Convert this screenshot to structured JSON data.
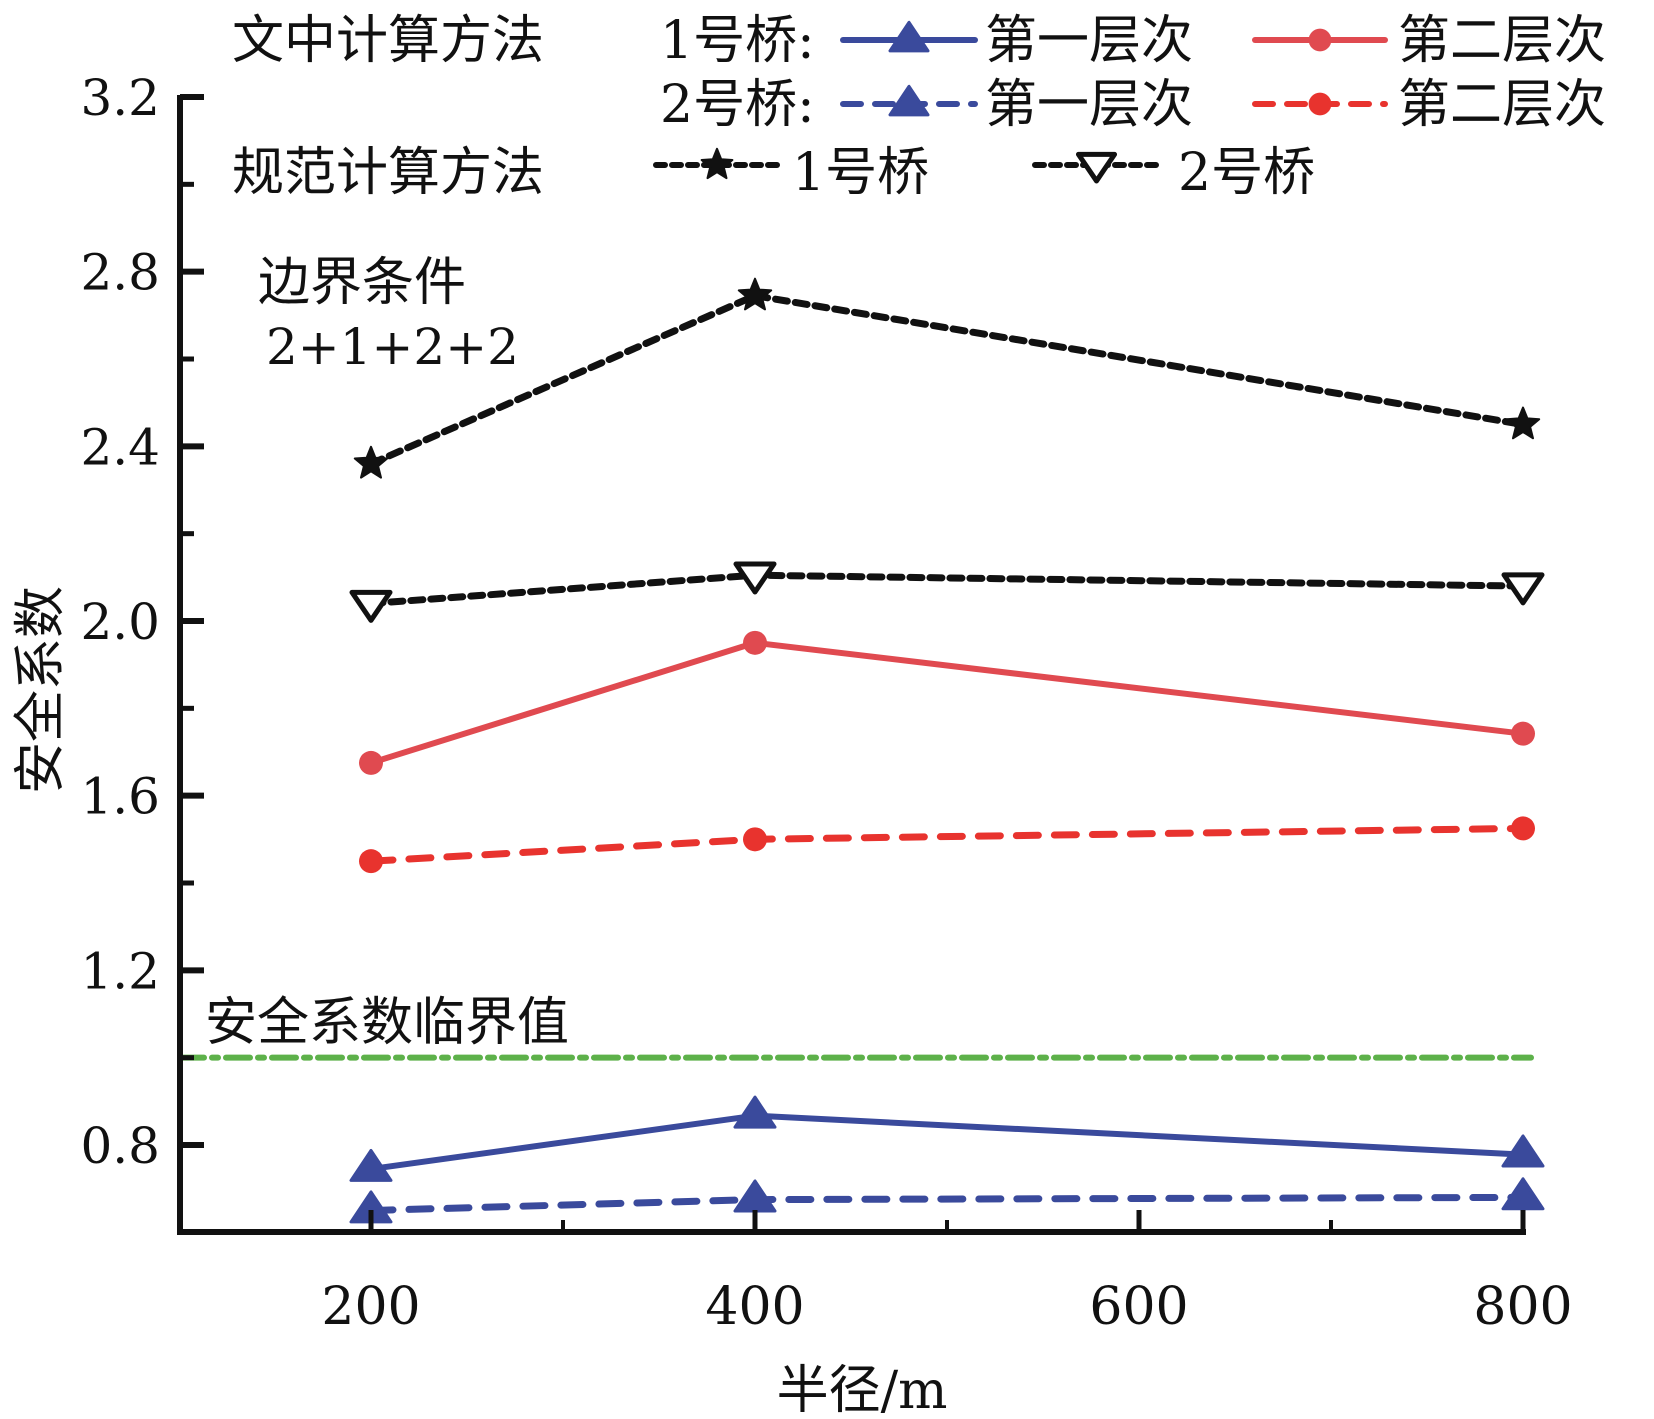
{
  "chart_data": {
    "type": "line",
    "xlabel": "半径/m",
    "ylabel": "安全系数",
    "xlim": [
      100,
      800
    ],
    "ylim": [
      0.6,
      3.2
    ],
    "x_ticks": [
      200,
      400,
      600,
      800
    ],
    "x_tick_labels": [
      "200",
      "400",
      "600",
      "800"
    ],
    "x_minor_ticks": [
      300,
      500,
      700
    ],
    "y_ticks": [
      0.8,
      1.2,
      1.6,
      2.0,
      2.4,
      2.8,
      3.2
    ],
    "y_tick_labels": [
      "0.8",
      "1.2",
      "1.6",
      "2.0",
      "2.4",
      "2.8",
      "3.2"
    ],
    "y_minor_ticks": [
      1.0,
      1.4,
      1.8,
      2.2,
      2.6,
      3.0
    ],
    "x": [
      200,
      400,
      800
    ],
    "series": [
      {
        "name": "文中计算方法 1号桥 第一层次",
        "values": [
          0.745,
          0.867,
          0.778
        ],
        "color": "#3a4a9c",
        "style": "solid",
        "marker": "triangle-up"
      },
      {
        "name": "文中计算方法 1号桥 第二层次",
        "values": [
          1.675,
          1.95,
          1.742
        ],
        "color": "#e04a50",
        "style": "solid",
        "marker": "circle"
      },
      {
        "name": "文中计算方法 2号桥 第一层次",
        "values": [
          0.65,
          0.675,
          0.68
        ],
        "color": "#3a4a9c",
        "style": "dashed",
        "marker": "triangle-up"
      },
      {
        "name": "文中计算方法 2号桥 第二层次",
        "values": [
          1.45,
          1.5,
          1.525
        ],
        "color": "#e8332e",
        "style": "dashed",
        "marker": "circle"
      },
      {
        "name": "规范计算方法 1号桥",
        "values": [
          2.36,
          2.745,
          2.45
        ],
        "color": "#111111",
        "style": "dotted",
        "marker": "star"
      },
      {
        "name": "规范计算方法 2号桥",
        "values": [
          2.04,
          2.105,
          2.08
        ],
        "color": "#111111",
        "style": "dotted",
        "marker": "triangle-down-open"
      }
    ],
    "reference_line": {
      "label": "安全系数临界值",
      "value": 1.0,
      "color": "#5db14a",
      "style": "dash-dot"
    },
    "annotation": {
      "line1": "边界条件",
      "line2": "2+1+2+2"
    },
    "legend": {
      "placement": "top",
      "method1": "文中计算方法",
      "method2": "规范计算方法",
      "bridge1": "1号桥:",
      "bridge2": "2号桥:",
      "level1": "第一层次",
      "level2": "第二层次",
      "spec_bridge1": "1号桥",
      "spec_bridge2": "2号桥"
    }
  }
}
